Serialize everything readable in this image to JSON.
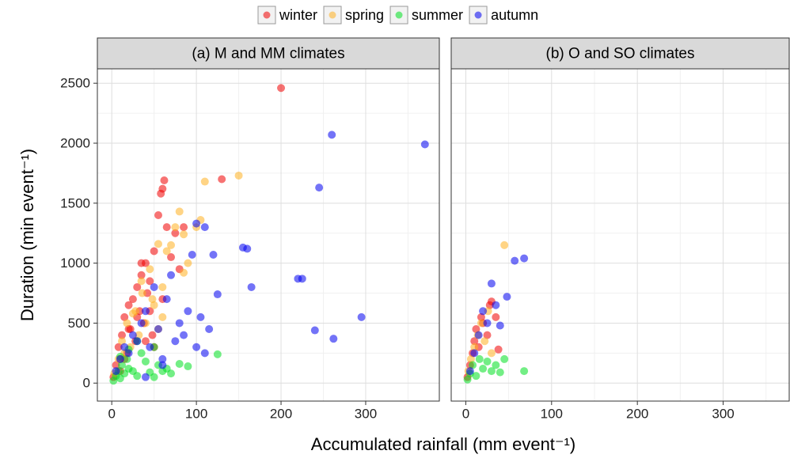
{
  "chart_data": [
    {
      "type": "scatter",
      "title": "(a) M and MM climates",
      "xlabel": "Accumulated rainfall (mm event⁻¹)",
      "ylabel": "Duration (min event⁻¹)",
      "xlim": [
        -17,
        387
      ],
      "ylim": [
        -150,
        2620
      ],
      "xticks": [
        0,
        100,
        200,
        300
      ],
      "yticks": [
        0,
        500,
        1000,
        1500,
        2000,
        2500
      ],
      "x_minor_grid": [
        50,
        150,
        250,
        350
      ],
      "y_minor_grid": [
        250,
        750,
        1250,
        1750,
        2250
      ],
      "series": [
        {
          "name": "winter",
          "color": "#f00000",
          "x": [
            2,
            5,
            8,
            10,
            12,
            15,
            18,
            20,
            22,
            25,
            28,
            30,
            33,
            35,
            38,
            40,
            42,
            45,
            48,
            50,
            55,
            58,
            60,
            62,
            65,
            70,
            75,
            80,
            85,
            50,
            130,
            200,
            60,
            40,
            30,
            20,
            15,
            10,
            45,
            35
          ],
          "values": [
            50,
            150,
            300,
            200,
            400,
            550,
            250,
            650,
            450,
            700,
            350,
            800,
            600,
            900,
            500,
            1000,
            750,
            850,
            400,
            1100,
            1400,
            1580,
            1620,
            1690,
            1300,
            1050,
            1250,
            950,
            1300,
            300,
            1700,
            2460,
            700,
            350,
            550,
            450,
            200,
            100,
            600,
            1000
          ]
        },
        {
          "name": "spring",
          "color": "#ffb020",
          "x": [
            3,
            8,
            12,
            18,
            22,
            28,
            32,
            36,
            40,
            45,
            50,
            55,
            60,
            65,
            70,
            75,
            80,
            85,
            90,
            100,
            105,
            110,
            150,
            85,
            60,
            48,
            25,
            15,
            35,
            55
          ],
          "values": [
            80,
            200,
            350,
            500,
            300,
            600,
            400,
            750,
            500,
            950,
            650,
            1160,
            800,
            1100,
            1150,
            1300,
            1430,
            1240,
            1000,
            1300,
            1360,
            1680,
            1730,
            920,
            550,
            700,
            580,
            250,
            850,
            450
          ]
        },
        {
          "name": "summer",
          "color": "#00e020",
          "x": [
            2,
            5,
            8,
            10,
            12,
            15,
            18,
            20,
            25,
            30,
            35,
            40,
            45,
            50,
            55,
            60,
            70,
            80,
            90,
            125,
            30,
            20,
            10,
            50,
            65
          ],
          "values": [
            20,
            60,
            100,
            40,
            150,
            80,
            200,
            120,
            100,
            60,
            250,
            180,
            90,
            300,
            150,
            100,
            80,
            160,
            140,
            240,
            350,
            280,
            220,
            50,
            120
          ]
        },
        {
          "name": "autumn",
          "color": "#0000f0",
          "x": [
            5,
            10,
            15,
            20,
            25,
            30,
            35,
            40,
            45,
            50,
            55,
            60,
            65,
            70,
            75,
            80,
            85,
            90,
            95,
            100,
            105,
            110,
            115,
            120,
            125,
            155,
            160,
            165,
            220,
            225,
            240,
            245,
            260,
            262,
            295,
            370,
            100,
            110,
            60,
            40
          ],
          "values": [
            100,
            200,
            300,
            250,
            400,
            350,
            500,
            600,
            300,
            800,
            450,
            200,
            700,
            900,
            350,
            500,
            400,
            600,
            1070,
            1330,
            550,
            1300,
            450,
            1070,
            740,
            1130,
            1120,
            800,
            870,
            870,
            440,
            1630,
            2070,
            370,
            550,
            1990,
            300,
            250,
            150,
            50
          ]
        }
      ]
    },
    {
      "type": "scatter",
      "title": "(b) O and SO climates",
      "xlim": [
        -17,
        377
      ],
      "ylim": [
        -150,
        2620
      ],
      "xticks": [
        0,
        100,
        200,
        300
      ],
      "yticks": [
        0,
        500,
        1000,
        1500,
        2000,
        2500
      ],
      "x_minor_grid": [
        50,
        150,
        250,
        350
      ],
      "y_minor_grid": [
        250,
        750,
        1250,
        1750,
        2250
      ],
      "series": [
        {
          "name": "winter",
          "color": "#f00000",
          "x": [
            2,
            5,
            8,
            10,
            12,
            15,
            18,
            20,
            25,
            28,
            30,
            35,
            38
          ],
          "values": [
            50,
            150,
            250,
            350,
            450,
            300,
            550,
            500,
            400,
            650,
            680,
            550,
            280
          ]
        },
        {
          "name": "spring",
          "color": "#ffb020",
          "x": [
            3,
            6,
            10,
            14,
            18,
            22,
            26,
            30,
            45
          ],
          "values": [
            100,
            200,
            300,
            400,
            500,
            350,
            600,
            250,
            1150
          ]
        },
        {
          "name": "summer",
          "color": "#00e020",
          "x": [
            2,
            5,
            8,
            12,
            16,
            20,
            25,
            30,
            35,
            40,
            45,
            68
          ],
          "values": [
            30,
            80,
            150,
            60,
            200,
            120,
            180,
            100,
            150,
            90,
            200,
            100
          ]
        },
        {
          "name": "autumn",
          "color": "#0000f0",
          "x": [
            5,
            10,
            15,
            20,
            25,
            30,
            35,
            40,
            48,
            57,
            68
          ],
          "values": [
            100,
            250,
            400,
            600,
            500,
            830,
            650,
            480,
            720,
            1020,
            1040
          ]
        }
      ]
    }
  ]
}
